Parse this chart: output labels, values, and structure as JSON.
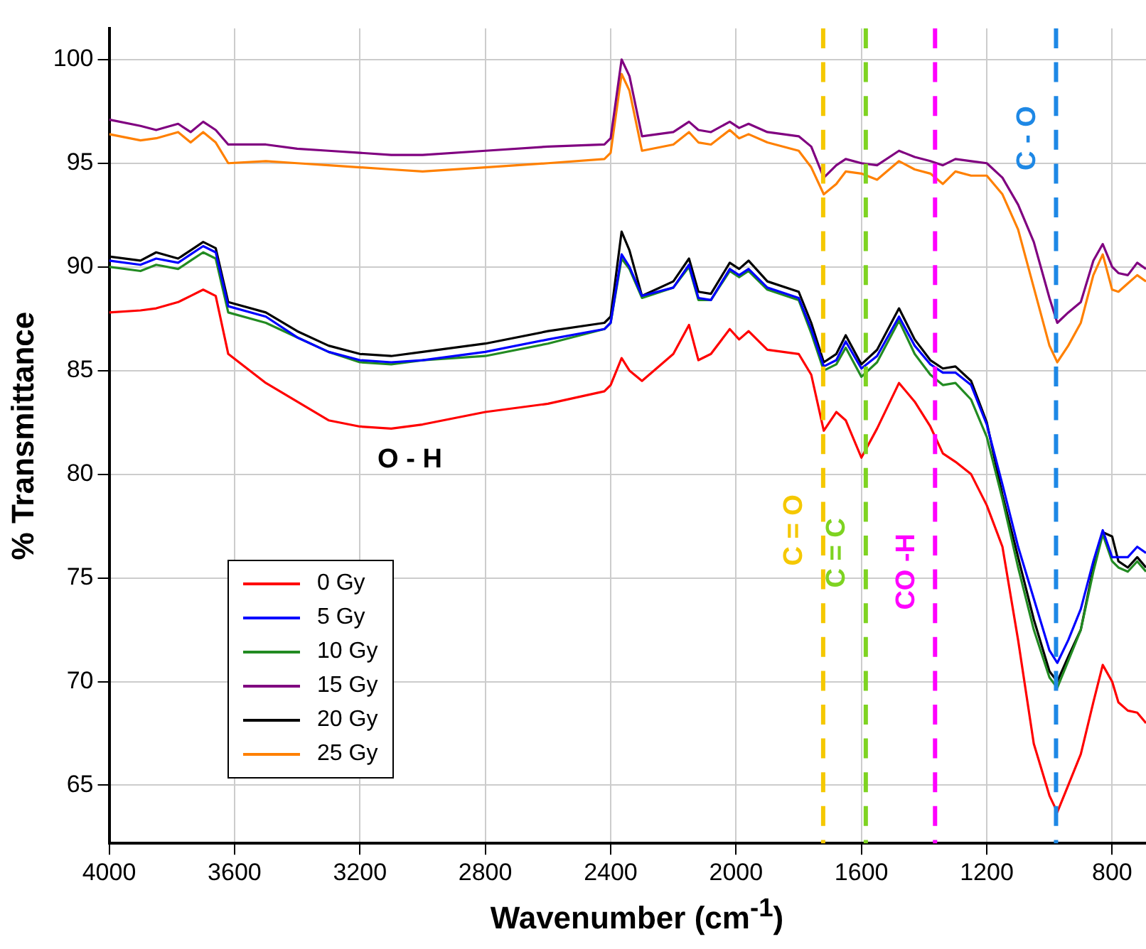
{
  "chart_data": {
    "type": "line",
    "xlabel": "Wavenumber (cm$^{-1}$)",
    "ylabel": "% Transmittance",
    "xlim": [
      4000,
      692
    ],
    "ylim": [
      62.2,
      101.5
    ],
    "xticks": [
      4000,
      3600,
      3200,
      2800,
      2400,
      2000,
      1600,
      1200,
      800
    ],
    "yticks": [
      65,
      70,
      75,
      80,
      85,
      90,
      95,
      100
    ],
    "grid": true,
    "legend": "bottom left",
    "marker": "none",
    "line_style": "solid",
    "x": [
      4000,
      3900,
      3850,
      3780,
      3740,
      3700,
      3660,
      3620,
      3500,
      3400,
      3300,
      3200,
      3100,
      3000,
      2800,
      2600,
      2420,
      2400,
      2365,
      2340,
      2300,
      2200,
      2150,
      2120,
      2080,
      2020,
      1990,
      1960,
      1900,
      1800,
      1760,
      1720,
      1680,
      1650,
      1600,
      1550,
      1480,
      1430,
      1380,
      1340,
      1300,
      1250,
      1200,
      1150,
      1100,
      1050,
      1000,
      975,
      940,
      900,
      860,
      830,
      800,
      780,
      750,
      720,
      692
    ],
    "series": [
      {
        "name": "0 Gy",
        "color": "#ff0000",
        "values": [
          87.8,
          87.9,
          88.0,
          88.3,
          88.6,
          88.9,
          88.6,
          85.8,
          84.4,
          83.5,
          82.6,
          82.3,
          82.2,
          82.4,
          83.0,
          83.4,
          84.0,
          84.3,
          85.6,
          85.0,
          84.5,
          85.8,
          87.2,
          85.5,
          85.8,
          87.0,
          86.5,
          86.9,
          86.0,
          85.8,
          84.8,
          82.1,
          83.0,
          82.6,
          80.8,
          82.2,
          84.4,
          83.5,
          82.3,
          81.0,
          80.6,
          80.0,
          78.5,
          76.5,
          72.0,
          67.0,
          64.5,
          63.7,
          65.0,
          66.5,
          69.0,
          70.8,
          70.0,
          69.0,
          68.6,
          68.5,
          68.0
        ]
      },
      {
        "name": "5 Gy",
        "color": "#0000ff",
        "values": [
          90.3,
          90.1,
          90.4,
          90.2,
          90.6,
          91.0,
          90.7,
          88.1,
          87.6,
          86.6,
          85.9,
          85.5,
          85.4,
          85.5,
          85.9,
          86.5,
          87.0,
          87.3,
          90.6,
          90.0,
          88.6,
          89.0,
          90.1,
          88.5,
          88.4,
          89.9,
          89.6,
          89.9,
          89.0,
          88.5,
          87.0,
          85.2,
          85.5,
          86.4,
          85.1,
          85.7,
          87.6,
          86.2,
          85.3,
          84.9,
          84.9,
          84.3,
          82.4,
          79.5,
          76.5,
          74.0,
          71.5,
          70.9,
          72.0,
          73.5,
          75.8,
          77.3,
          76.0,
          76.0,
          76.0,
          76.5,
          76.2
        ]
      },
      {
        "name": "10 Gy",
        "color": "#228b22",
        "values": [
          90.0,
          89.8,
          90.1,
          89.9,
          90.3,
          90.7,
          90.4,
          87.8,
          87.3,
          86.6,
          85.9,
          85.4,
          85.3,
          85.5,
          85.7,
          86.3,
          87.0,
          87.3,
          90.4,
          89.9,
          88.5,
          89.0,
          90.0,
          88.4,
          88.4,
          89.8,
          89.5,
          89.8,
          88.9,
          88.4,
          86.8,
          85.0,
          85.3,
          86.1,
          84.7,
          85.4,
          87.4,
          85.8,
          84.8,
          84.3,
          84.4,
          83.6,
          81.8,
          78.8,
          75.5,
          72.5,
          70.2,
          69.7,
          71.0,
          72.5,
          75.3,
          77.1,
          75.8,
          75.5,
          75.3,
          75.8,
          75.3
        ]
      },
      {
        "name": "15 Gy",
        "color": "#800080",
        "values": [
          97.1,
          96.8,
          96.6,
          96.9,
          96.5,
          97.0,
          96.6,
          95.9,
          95.9,
          95.7,
          95.6,
          95.5,
          95.4,
          95.4,
          95.6,
          95.8,
          95.9,
          96.2,
          100.0,
          99.2,
          96.3,
          96.5,
          97.0,
          96.6,
          96.5,
          97.0,
          96.7,
          96.9,
          96.5,
          96.3,
          95.8,
          94.3,
          94.9,
          95.2,
          95.0,
          94.9,
          95.6,
          95.3,
          95.1,
          94.9,
          95.2,
          95.1,
          95.0,
          94.3,
          93.0,
          91.2,
          88.5,
          87.3,
          87.8,
          88.3,
          90.3,
          91.1,
          90.0,
          89.7,
          89.6,
          90.2,
          89.9
        ]
      },
      {
        "name": "20 Gy",
        "color": "#000000",
        "values": [
          90.5,
          90.3,
          90.7,
          90.4,
          90.8,
          91.2,
          90.9,
          88.3,
          87.8,
          86.9,
          86.2,
          85.8,
          85.7,
          85.9,
          86.3,
          86.9,
          87.3,
          87.6,
          91.7,
          90.8,
          88.6,
          89.3,
          90.4,
          88.8,
          88.7,
          90.2,
          89.9,
          90.3,
          89.3,
          88.8,
          87.3,
          85.4,
          85.8,
          86.7,
          85.3,
          86.0,
          88.0,
          86.5,
          85.5,
          85.1,
          85.2,
          84.5,
          82.5,
          79.0,
          76.0,
          73.0,
          70.5,
          70.0,
          71.2,
          72.5,
          75.5,
          77.2,
          77.0,
          75.8,
          75.5,
          76.0,
          75.5
        ]
      },
      {
        "name": "25 Gy",
        "color": "#ff8000",
        "values": [
          96.4,
          96.1,
          96.2,
          96.5,
          96.0,
          96.5,
          96.0,
          95.0,
          95.1,
          95.0,
          94.9,
          94.8,
          94.7,
          94.6,
          94.8,
          95.0,
          95.2,
          95.5,
          99.3,
          98.5,
          95.6,
          95.9,
          96.5,
          96.0,
          95.9,
          96.6,
          96.2,
          96.4,
          96.0,
          95.6,
          94.8,
          93.5,
          94.0,
          94.6,
          94.5,
          94.2,
          95.1,
          94.7,
          94.5,
          94.0,
          94.6,
          94.4,
          94.4,
          93.5,
          91.8,
          89.0,
          86.2,
          85.4,
          86.2,
          87.3,
          89.6,
          90.6,
          88.9,
          88.8,
          89.2,
          89.6,
          89.3
        ]
      }
    ],
    "ref_lines": [
      {
        "axis": "x",
        "value": 1722,
        "label": "C = O",
        "color": "#f5c800",
        "line_style": "dashed"
      },
      {
        "axis": "x",
        "value": 1586,
        "label": "C = C",
        "color": "#7ed321",
        "line_style": "dashed"
      },
      {
        "axis": "x",
        "value": 1365,
        "label": "CO -H",
        "color": "#ff00ff",
        "line_style": "dashed"
      },
      {
        "axis": "x",
        "value": 979,
        "label": "C - O",
        "color": "#1e88e5",
        "line_style": "dashed"
      }
    ],
    "annotations": [
      "O - H"
    ]
  }
}
